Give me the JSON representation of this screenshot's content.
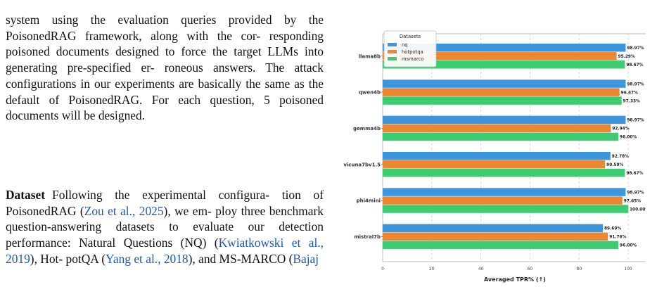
{
  "text": {
    "p1_lines": [
      "system using the evaluation queries provided by",
      "the PoisonedRAG framework, along with the cor-",
      "responding poisoned documents designed to force",
      "the target LLMs into generating pre-specified er-",
      "roneous answers. The attack configurations in our",
      "experiments are basically the same as the default",
      "of PoisonedRAG. For each question, 5 poisoned",
      "documents will be designed."
    ],
    "p2_heading": "Dataset",
    "p2_lines": [
      "Following the experimental configura-",
      "tion of PoisonedRAG (|Zou et al., 2025|), we em-",
      "ploy three benchmark question-answering datasets",
      "to evaluate our detection performance: Natural",
      "Questions (NQ) (|Kwiatkowski et al., 2019|), Hot-",
      "potQA (|Yang et al., 2018|), and MS-MARCO (|Bajaj"
    ]
  },
  "chart_data": {
    "type": "bar",
    "orientation": "horizontal",
    "categories": [
      "llama8b",
      "qwen4b",
      "gemma4b",
      "vicuna7bv1.5",
      "phi4mini",
      "mistral7b"
    ],
    "series": [
      {
        "name": "nq",
        "color": "#3b96de",
        "values": [
          98.97,
          98.97,
          98.97,
          92.78,
          98.97,
          89.69
        ],
        "labels": [
          "98.97%",
          "98.97%",
          "98.97%",
          "92.78%",
          "98.97%",
          "89.69%"
        ]
      },
      {
        "name": "hotpotqa",
        "color": "#ec8833",
        "values": [
          95.29,
          96.47,
          92.94,
          90.59,
          97.65,
          91.76
        ],
        "labels": [
          "95.29%",
          "96.47%",
          "92.94%",
          "90.59%",
          "97.65%",
          "91.76%"
        ]
      },
      {
        "name": "msmarco",
        "color": "#3dcc72",
        "values": [
          98.67,
          97.33,
          96.0,
          98.67,
          100.0,
          96.0
        ],
        "labels": [
          "98.67%",
          "97.33%",
          "96.00%",
          "98.67%",
          "100.00%",
          "96.00%"
        ]
      }
    ],
    "xticks": [
      0,
      20,
      40,
      60,
      80,
      100
    ],
    "xtick_labels": [
      "0",
      "20",
      "40",
      "60",
      "80",
      "100"
    ],
    "xlim": [
      0,
      110
    ],
    "xlabel": "Averaged TPR% (↑)",
    "legend_title": "Datasets",
    "legend_position": "top-left",
    "grid": "vertical dashed"
  }
}
